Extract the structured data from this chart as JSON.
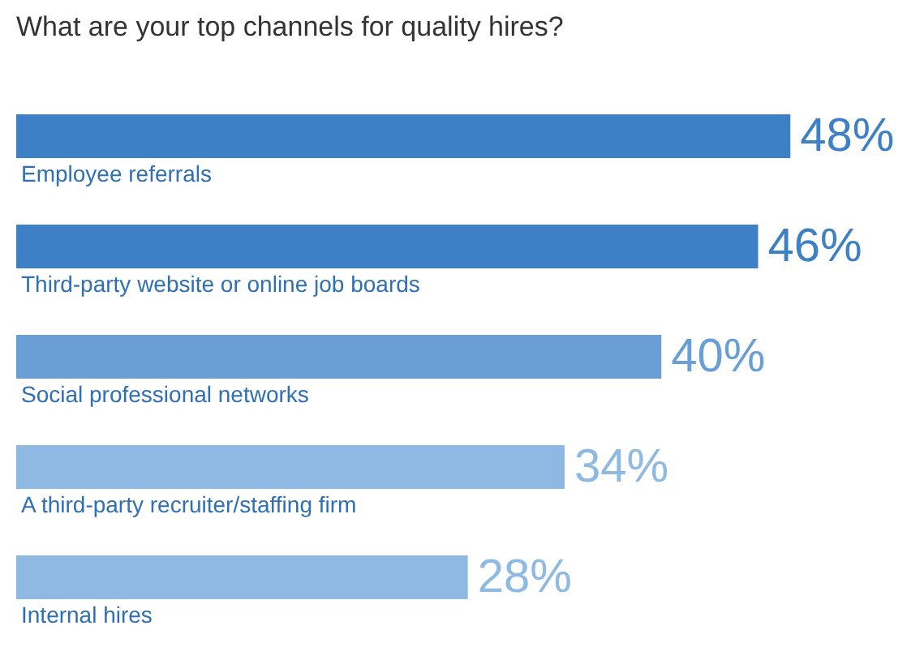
{
  "chart_data": {
    "type": "bar",
    "orientation": "horizontal",
    "title": "What are your top channels for quality hires?",
    "categories": [
      "Employee referrals",
      "Third-party website or online job boards",
      "Social professional networks",
      "A third-party recruiter/staffing firm",
      "Internal hires"
    ],
    "values": [
      48,
      46,
      40,
      34,
      28
    ],
    "colors": [
      "#3e80c5",
      "#3e80c5",
      "#6a9fd6",
      "#8db9e2",
      "#8db9e2"
    ],
    "value_labels": [
      "48%",
      "46%",
      "40%",
      "34%",
      "28%"
    ]
  }
}
